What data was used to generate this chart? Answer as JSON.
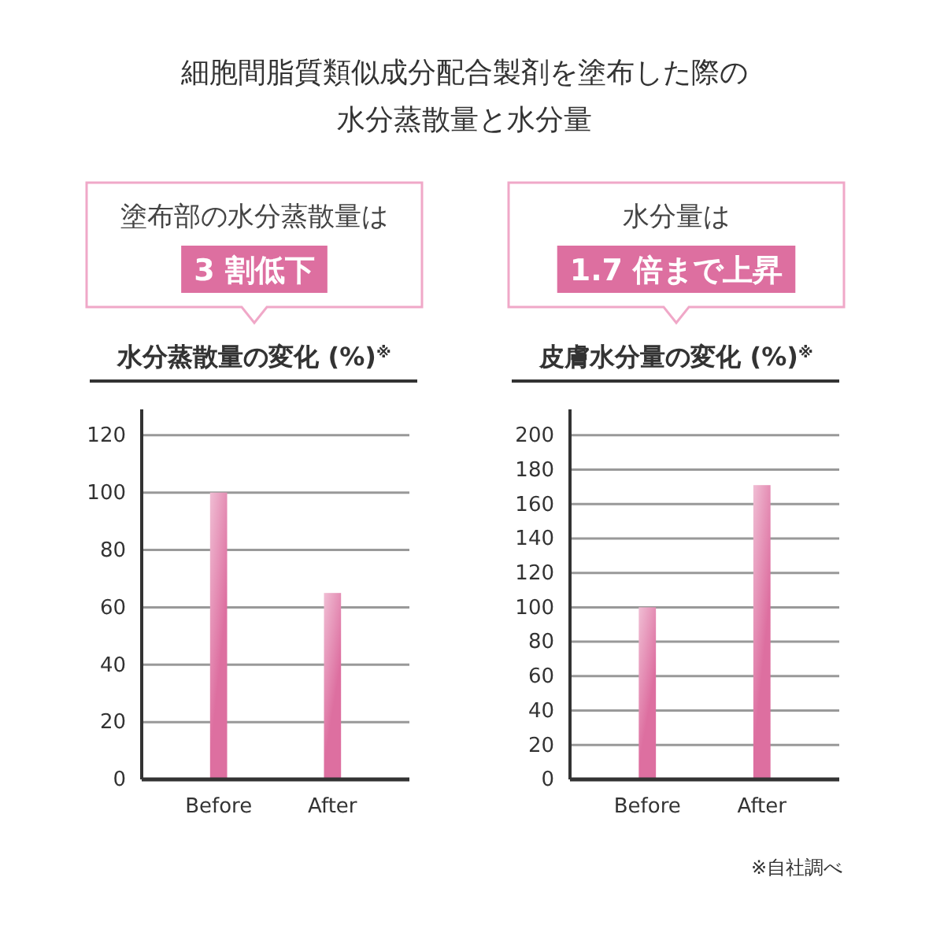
{
  "chart_data": [
    {
      "type": "bar",
      "title": "水分蒸散量の変化 (%)$^{※}$",
      "categories": [
        "Before",
        "After"
      ],
      "values": [
        100,
        65
      ],
      "color": "#dd6fa0",
      "ylim": [
        0,
        129
      ],
      "yticks": [
        0,
        20,
        40,
        60,
        80,
        100,
        120
      ],
      "grid": "y",
      "annotations": [
        "塗布部の水分蒸散量は",
        "3 割低下",
        "細胞間脂質類似成分配合製剤を塗布した際の",
        "水分蒸散量と水分量"
      ]
    },
    {
      "type": "bar",
      "title": "皮膚水分量の変化 (%)$^{※}$",
      "categories": [
        "Before",
        "After"
      ],
      "values": [
        100,
        171
      ],
      "color": "#dd6fa0",
      "ylim": [
        0,
        215
      ],
      "yticks": [
        0,
        20,
        40,
        60,
        80,
        100,
        120,
        140,
        160,
        180,
        200
      ],
      "grid": "y",
      "annotations": [
        "水分量は",
        "1.7 倍まで上昇",
        "※自社調べ"
      ]
    }
  ]
}
